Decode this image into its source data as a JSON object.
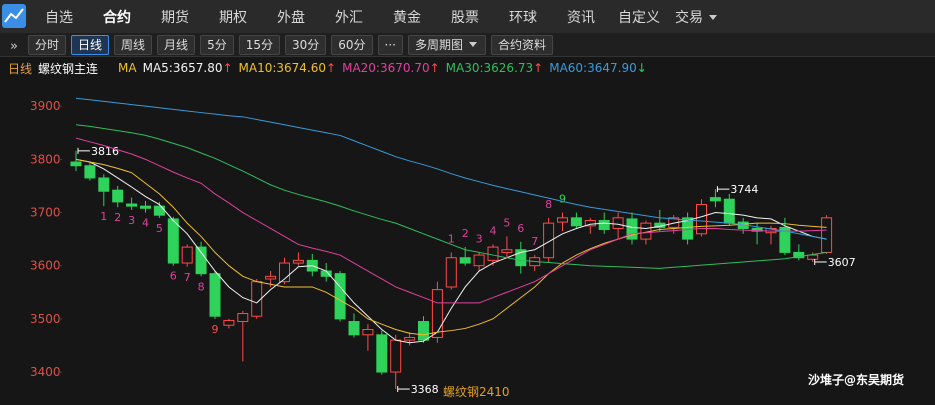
{
  "nav": {
    "items": [
      "自选",
      "合约",
      "期货",
      "期权",
      "外盘",
      "外汇",
      "黄金",
      "股票",
      "环球",
      "资讯",
      "自定义",
      "交易"
    ],
    "active": 1,
    "dropdown_item": 11
  },
  "toolbar": {
    "items": [
      "分时",
      "日线",
      "周线",
      "月线",
      "5分",
      "15分",
      "30分",
      "60分",
      "···",
      "多周期图",
      "合约资料"
    ],
    "active": 1,
    "dropdown_item": 9
  },
  "info": {
    "period": "日线",
    "contract": "螺纹钢主连",
    "ma_label": "MA"
  },
  "watermarks": {
    "author": "沙堆子@东吴期货",
    "contract": "螺纹钢2410"
  },
  "chart_data": {
    "type": "candlestick",
    "ylim": [
      3338,
      3953
    ],
    "yticks": [
      3400,
      3500,
      3600,
      3700,
      3800,
      3900
    ],
    "grid": false,
    "up_color": "#ff4a4a",
    "down_color": "#2fd25a",
    "candles": [
      {
        "open": 3795,
        "high": 3816,
        "low": 3778,
        "close": 3788,
        "tag": "high"
      },
      {
        "open": 3788,
        "high": 3795,
        "low": 3760,
        "close": 3765
      },
      {
        "open": 3765,
        "high": 3772,
        "low": 3712,
        "close": 3740,
        "td": {
          "label": "1",
          "color": "#e040a0",
          "pos": "below"
        }
      },
      {
        "open": 3742,
        "high": 3750,
        "low": 3710,
        "close": 3720,
        "td": {
          "label": "2",
          "color": "#e040a0",
          "pos": "below"
        }
      },
      {
        "open": 3716,
        "high": 3728,
        "low": 3705,
        "close": 3712,
        "td": {
          "label": "3",
          "color": "#e040a0",
          "pos": "below"
        }
      },
      {
        "open": 3712,
        "high": 3722,
        "low": 3700,
        "close": 3708,
        "td": {
          "label": "4",
          "color": "#e040a0",
          "pos": "below"
        }
      },
      {
        "open": 3712,
        "high": 3720,
        "low": 3690,
        "close": 3695,
        "td": {
          "label": "5",
          "color": "#e040a0",
          "pos": "below"
        }
      },
      {
        "open": 3688,
        "high": 3692,
        "low": 3600,
        "close": 3605,
        "td": {
          "label": "6",
          "color": "#e040a0",
          "pos": "below"
        }
      },
      {
        "open": 3605,
        "high": 3640,
        "low": 3598,
        "close": 3635,
        "td": {
          "label": "7",
          "color": "#e040a0",
          "pos": "below"
        }
      },
      {
        "open": 3635,
        "high": 3645,
        "low": 3580,
        "close": 3585,
        "td": {
          "label": "8",
          "color": "#e040a0",
          "pos": "below"
        }
      },
      {
        "open": 3585,
        "high": 3590,
        "low": 3500,
        "close": 3505,
        "td": {
          "label": "9",
          "color": "#ff4a4a",
          "pos": "below"
        }
      },
      {
        "open": 3488,
        "high": 3500,
        "low": 3482,
        "close": 3497
      },
      {
        "open": 3495,
        "high": 3515,
        "low": 3420,
        "close": 3510
      },
      {
        "open": 3505,
        "high": 3575,
        "low": 3500,
        "close": 3570
      },
      {
        "open": 3575,
        "high": 3590,
        "low": 3560,
        "close": 3580
      },
      {
        "open": 3570,
        "high": 3615,
        "low": 3565,
        "close": 3605
      },
      {
        "open": 3605,
        "high": 3625,
        "low": 3600,
        "close": 3610
      },
      {
        "open": 3610,
        "high": 3622,
        "low": 3580,
        "close": 3590
      },
      {
        "open": 3590,
        "high": 3605,
        "low": 3570,
        "close": 3580
      },
      {
        "open": 3585,
        "high": 3590,
        "low": 3495,
        "close": 3500
      },
      {
        "open": 3495,
        "high": 3510,
        "low": 3465,
        "close": 3470
      },
      {
        "open": 3470,
        "high": 3490,
        "low": 3440,
        "close": 3480
      },
      {
        "open": 3470,
        "high": 3478,
        "low": 3395,
        "close": 3400
      },
      {
        "open": 3400,
        "high": 3470,
        "low": 3368,
        "close": 3460,
        "tag": "low"
      },
      {
        "open": 3460,
        "high": 3475,
        "low": 3450,
        "close": 3465
      },
      {
        "open": 3495,
        "high": 3505,
        "low": 3455,
        "close": 3460
      },
      {
        "open": 3465,
        "high": 3570,
        "low": 3455,
        "close": 3555
      },
      {
        "open": 3560,
        "high": 3625,
        "low": 3555,
        "close": 3615,
        "td": {
          "label": "1",
          "color": "#e040a0",
          "pos": "above"
        }
      },
      {
        "open": 3615,
        "high": 3635,
        "low": 3600,
        "close": 3605,
        "td": {
          "label": "2",
          "color": "#e040a0",
          "pos": "above"
        }
      },
      {
        "open": 3600,
        "high": 3625,
        "low": 3590,
        "close": 3620,
        "td": {
          "label": "3",
          "color": "#e040a0",
          "pos": "above"
        }
      },
      {
        "open": 3610,
        "high": 3640,
        "low": 3600,
        "close": 3635,
        "td": {
          "label": "4",
          "color": "#e040a0",
          "pos": "above"
        }
      },
      {
        "open": 3625,
        "high": 3655,
        "low": 3615,
        "close": 3630,
        "td": {
          "label": "5",
          "color": "#e040a0",
          "pos": "above"
        }
      },
      {
        "open": 3630,
        "high": 3645,
        "low": 3585,
        "close": 3600,
        "td": {
          "label": "6",
          "color": "#e040a0",
          "pos": "above"
        }
      },
      {
        "open": 3600,
        "high": 3620,
        "low": 3590,
        "close": 3615,
        "td": {
          "label": "7",
          "color": "#e040a0",
          "pos": "above"
        }
      },
      {
        "open": 3615,
        "high": 3690,
        "low": 3605,
        "close": 3680,
        "td": {
          "label": "8",
          "color": "#e040a0",
          "pos": "above"
        }
      },
      {
        "open": 3682,
        "high": 3700,
        "low": 3665,
        "close": 3690,
        "td": {
          "label": "9",
          "color": "#2fd25a",
          "pos": "above"
        }
      },
      {
        "open": 3690,
        "high": 3700,
        "low": 3670,
        "close": 3675
      },
      {
        "open": 3675,
        "high": 3690,
        "low": 3660,
        "close": 3685
      },
      {
        "open": 3685,
        "high": 3700,
        "low": 3660,
        "close": 3668
      },
      {
        "open": 3670,
        "high": 3700,
        "low": 3650,
        "close": 3690
      },
      {
        "open": 3688,
        "high": 3700,
        "low": 3640,
        "close": 3650
      },
      {
        "open": 3650,
        "high": 3685,
        "low": 3640,
        "close": 3680
      },
      {
        "open": 3680,
        "high": 3705,
        "low": 3665,
        "close": 3672
      },
      {
        "open": 3672,
        "high": 3695,
        "low": 3660,
        "close": 3690
      },
      {
        "open": 3690,
        "high": 3700,
        "low": 3640,
        "close": 3650
      },
      {
        "open": 3660,
        "high": 3725,
        "low": 3655,
        "close": 3715
      },
      {
        "open": 3728,
        "high": 3744,
        "low": 3710,
        "close": 3722,
        "tag": "high"
      },
      {
        "open": 3725,
        "high": 3735,
        "low": 3675,
        "close": 3680
      },
      {
        "open": 3682,
        "high": 3690,
        "low": 3660,
        "close": 3670
      },
      {
        "open": 3670,
        "high": 3680,
        "low": 3640,
        "close": 3665
      },
      {
        "open": 3662,
        "high": 3675,
        "low": 3640,
        "close": 3670
      },
      {
        "open": 3672,
        "high": 3690,
        "low": 3620,
        "close": 3625
      },
      {
        "open": 3625,
        "high": 3640,
        "low": 3610,
        "close": 3615
      },
      {
        "open": 3612,
        "high": 3625,
        "low": 3607,
        "close": 3620,
        "tag": "low"
      },
      {
        "open": 3625,
        "high": 3695,
        "low": 3622,
        "close": 3690
      }
    ],
    "series": [
      {
        "label": "MA5:3657.80",
        "arrow": "↑",
        "arrow_color": "#ff4a4a",
        "color": "#f2f2f2",
        "values": [
          3800,
          3795,
          3782,
          3765,
          3748,
          3730,
          3715,
          3685,
          3660,
          3625,
          3590,
          3560,
          3540,
          3530,
          3555,
          3575,
          3598,
          3600,
          3590,
          3560,
          3530,
          3505,
          3480,
          3460,
          3455,
          3458,
          3475,
          3520,
          3560,
          3590,
          3605,
          3615,
          3625,
          3630,
          3645,
          3660,
          3670,
          3678,
          3680,
          3678,
          3672,
          3670,
          3674,
          3680,
          3685,
          3692,
          3700,
          3698,
          3695,
          3690,
          3688,
          3675,
          3665,
          3655,
          3650
        ]
      },
      {
        "label": "MA10:3674.60",
        "arrow": "↑",
        "arrow_color": "#ff4a4a",
        "color": "#f0c030",
        "values": [
          3800,
          3795,
          3790,
          3783,
          3775,
          3755,
          3735,
          3710,
          3680,
          3655,
          3625,
          3600,
          3580,
          3570,
          3565,
          3560,
          3560,
          3560,
          3550,
          3535,
          3520,
          3500,
          3490,
          3480,
          3473,
          3470,
          3475,
          3478,
          3482,
          3490,
          3500,
          3520,
          3540,
          3560,
          3585,
          3605,
          3620,
          3632,
          3642,
          3650,
          3658,
          3663,
          3668,
          3670,
          3672,
          3674,
          3675,
          3676,
          3678,
          3680,
          3680,
          3679,
          3676,
          3674,
          3672
        ]
      },
      {
        "label": "MA20:3670.70",
        "arrow": "↑",
        "arrow_color": "#ff4a4a",
        "color": "#e040a0",
        "values": [
          3840,
          3833,
          3826,
          3818,
          3810,
          3800,
          3788,
          3776,
          3765,
          3755,
          3735,
          3718,
          3700,
          3685,
          3670,
          3655,
          3640,
          3633,
          3627,
          3620,
          3605,
          3590,
          3575,
          3560,
          3550,
          3540,
          3530,
          3530,
          3530,
          3530,
          3540,
          3550,
          3560,
          3570,
          3585,
          3600,
          3615,
          3630,
          3640,
          3650,
          3660,
          3662,
          3664,
          3666,
          3668,
          3670,
          3670,
          3668,
          3667,
          3666,
          3665,
          3665,
          3665,
          3666,
          3667
        ]
      },
      {
        "label": "MA30:3626.73",
        "arrow": "↑",
        "arrow_color": "#ff4a4a",
        "color": "#2fbf5c",
        "values": [
          3865,
          3862,
          3858,
          3854,
          3850,
          3845,
          3838,
          3830,
          3822,
          3812,
          3802,
          3790,
          3778,
          3765,
          3752,
          3742,
          3734,
          3727,
          3720,
          3712,
          3703,
          3695,
          3687,
          3680,
          3670,
          3660,
          3650,
          3640,
          3630,
          3625,
          3620,
          3615,
          3610,
          3608,
          3606,
          3604,
          3602,
          3600,
          3599,
          3598,
          3597,
          3596,
          3595,
          3597,
          3599,
          3601,
          3603,
          3605,
          3607,
          3609,
          3611,
          3613,
          3617,
          3621,
          3625
        ]
      },
      {
        "label": "MA60:3647.90",
        "arrow": "↓",
        "arrow_color": "#2fd25a",
        "color": "#3a9ad9",
        "values": [
          3915,
          3912,
          3909,
          3906,
          3903,
          3900,
          3897,
          3894,
          3891,
          3888,
          3885,
          3882,
          3880,
          3875,
          3870,
          3865,
          3860,
          3855,
          3850,
          3845,
          3835,
          3825,
          3815,
          3805,
          3797,
          3790,
          3782,
          3773,
          3765,
          3758,
          3751,
          3745,
          3739,
          3733,
          3727,
          3721,
          3715,
          3710,
          3706,
          3702,
          3698,
          3694,
          3690,
          3688,
          3686,
          3684,
          3682,
          3680,
          3677,
          3673,
          3669,
          3665,
          3660,
          3655,
          3650
        ]
      }
    ]
  }
}
